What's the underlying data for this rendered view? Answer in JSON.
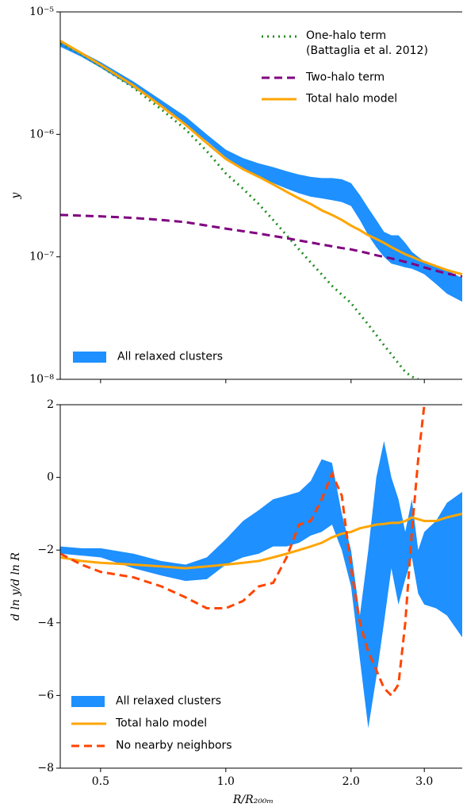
{
  "chart_data": [
    {
      "type": "line",
      "ylabel": "y",
      "log_y": true,
      "legend": "upper right",
      "x": [
        0.4,
        0.45,
        0.5,
        0.6,
        0.7,
        0.8,
        0.9,
        1.0,
        1.1,
        1.2,
        1.3,
        1.4,
        1.5,
        1.6,
        1.7,
        1.8,
        1.9,
        2.0,
        2.1,
        2.2,
        2.3,
        2.4,
        2.5,
        2.6,
        2.7,
        2.8,
        2.9,
        3.0,
        3.2,
        3.4,
        3.7
      ],
      "xlim": [
        0.4,
        3.7
      ],
      "log_x": true,
      "ylim": [
        1e-08,
        1e-05
      ],
      "yticks": [
        {
          "value": 1e-05,
          "label": "10⁻⁵"
        },
        {
          "value": 1e-06,
          "label": "10⁻⁶"
        },
        {
          "value": 1e-07,
          "label": "10⁻⁷"
        },
        {
          "value": 1e-08,
          "label": "10⁻⁸"
        }
      ],
      "series": [
        {
          "name": "All relaxed clusters",
          "color": "#1e90ff",
          "style": "band",
          "legend": "lower left",
          "upper": [
            5.7e-06,
            4.7e-06,
            3.9e-06,
            2.7e-06,
            1.9e-06,
            1.4e-06,
            1e-06,
            7.5e-07,
            6.4e-07,
            5.8e-07,
            5.4e-07,
            5e-07,
            4.7e-07,
            4.5e-07,
            4.4e-07,
            4.4e-07,
            4.3e-07,
            4e-07,
            3.2e-07,
            2.5e-07,
            2e-07,
            1.6e-07,
            1.5e-07,
            1.5e-07,
            1.3e-07,
            1.1e-07,
            1e-07,
            9.2e-08,
            8.5e-08,
            7.8e-08,
            6.7e-08
          ],
          "lower": [
            5.2e-06,
            4.3e-06,
            3.5e-06,
            2.4e-06,
            1.7e-06,
            1.2e-06,
            8.8e-07,
            6.5e-07,
            5.2e-07,
            4.5e-07,
            4e-07,
            3.6e-07,
            3.3e-07,
            3.1e-07,
            3e-07,
            2.9e-07,
            2.8e-07,
            2.6e-07,
            2e-07,
            1.5e-07,
            1.2e-07,
            1e-07,
            8.8e-08,
            8.5e-08,
            8.2e-08,
            8e-08,
            7.6e-08,
            7.2e-08,
            6e-08,
            5e-08,
            4.3e-08
          ]
        },
        {
          "name": "One-halo term\n(Battaglia et al. 2012)",
          "color": "#228b22",
          "style": "dotted",
          "values": [
            5.5e-06,
            4.5e-06,
            3.6e-06,
            2.4e-06,
            1.6e-06,
            1.1e-06,
            7.3e-07,
            4.8e-07,
            3.6e-07,
            2.7e-07,
            2e-07,
            1.5e-07,
            1.15e-07,
            9e-08,
            7.2e-08,
            5.8e-08,
            4.9e-08,
            4.2e-08,
            3.4e-08,
            2.8e-08,
            2.3e-08,
            1.9e-08,
            1.6e-08,
            1.35e-08,
            1.15e-08,
            1.05e-08,
            1e-08,
            null,
            null,
            null,
            null
          ]
        },
        {
          "name": "Two-halo term",
          "color": "#800080",
          "style": "dashed",
          "values": [
            2.2e-07,
            2.17e-07,
            2.14e-07,
            2.08e-07,
            2e-07,
            1.92e-07,
            1.8e-07,
            1.7e-07,
            1.62e-07,
            1.55e-07,
            1.48e-07,
            1.42e-07,
            1.36e-07,
            1.31e-07,
            1.26e-07,
            1.22e-07,
            1.18e-07,
            1.15e-07,
            1.11e-07,
            1.07e-07,
            1.03e-07,
            1e-07,
            9.7e-08,
            9.4e-08,
            9.1e-08,
            8.8e-08,
            8.5e-08,
            8.2e-08,
            7.7e-08,
            7.3e-08,
            6.9e-08
          ]
        },
        {
          "name": "Total halo model",
          "color": "#ffa500",
          "style": "solid",
          "values": [
            5.8e-06,
            4.6e-06,
            3.7e-06,
            2.5e-06,
            1.7e-06,
            1.2e-06,
            8.5e-07,
            6.3e-07,
            5.2e-07,
            4.5e-07,
            3.9e-07,
            3.4e-07,
            3e-07,
            2.7e-07,
            2.4e-07,
            2.2e-07,
            2e-07,
            1.8e-07,
            1.65e-07,
            1.5e-07,
            1.4e-07,
            1.3e-07,
            1.2e-07,
            1.12e-07,
            1.05e-07,
            1e-07,
            9.5e-08,
            9.1e-08,
            8.4e-08,
            7.8e-08,
            7.2e-08
          ]
        }
      ]
    },
    {
      "type": "line",
      "ylabel": "d ln y/d ln R",
      "xlabel": "R/R₂₀₀ₘ",
      "legend": "lower left",
      "x": [
        0.4,
        0.45,
        0.5,
        0.6,
        0.7,
        0.8,
        0.9,
        1.0,
        1.1,
        1.2,
        1.3,
        1.4,
        1.5,
        1.6,
        1.7,
        1.8,
        1.9,
        2.0,
        2.1,
        2.2,
        2.3,
        2.4,
        2.5,
        2.6,
        2.7,
        2.8,
        2.9,
        3.0,
        3.2,
        3.4,
        3.7
      ],
      "xlim": [
        0.4,
        3.7
      ],
      "log_x": true,
      "xticks": [
        0.5,
        {
          "value": 1,
          "label": "1.0"
        },
        {
          "value": 2,
          "label": "2.0"
        },
        {
          "value": 3,
          "label": "3.0"
        }
      ],
      "ylim": [
        -8,
        2
      ],
      "yticks": [
        2,
        0,
        {
          "value": -2,
          "label": "−2"
        },
        {
          "value": -4,
          "label": "−4"
        },
        {
          "value": -6,
          "label": "−6"
        },
        {
          "value": -8,
          "label": "−8"
        }
      ],
      "series": [
        {
          "name": "All relaxed clusters",
          "color": "#1e90ff",
          "style": "band",
          "upper": [
            -1.9,
            -1.95,
            -1.95,
            -2.1,
            -2.3,
            -2.4,
            -2.2,
            -1.7,
            -1.2,
            -0.9,
            -0.6,
            -0.5,
            -0.4,
            -0.1,
            0.5,
            0.4,
            -1.0,
            -2.0,
            -3.8,
            -2.0,
            0.0,
            1.0,
            0.0,
            -0.6,
            -1.5,
            -0.6,
            -2.0,
            -1.5,
            -1.2,
            -0.7,
            -0.4
          ],
          "lower": [
            -2.1,
            -2.15,
            -2.2,
            -2.5,
            -2.7,
            -2.85,
            -2.8,
            -2.4,
            -2.2,
            -2.1,
            -1.9,
            -1.9,
            -1.8,
            -1.6,
            -1.5,
            -1.3,
            -2.0,
            -3.0,
            -5.0,
            -6.9,
            -5.5,
            -4.0,
            -2.5,
            -3.5,
            -2.8,
            -2.2,
            -3.2,
            -3.5,
            -3.6,
            -3.8,
            -4.4
          ]
        },
        {
          "name": "Total halo model",
          "color": "#ffa500",
          "style": "solid",
          "values": [
            -2.2,
            -2.3,
            -2.35,
            -2.4,
            -2.45,
            -2.5,
            -2.45,
            -2.4,
            -2.35,
            -2.3,
            -2.2,
            -2.1,
            -2.0,
            -1.9,
            -1.8,
            -1.65,
            -1.55,
            -1.5,
            -1.4,
            -1.35,
            -1.3,
            -1.28,
            -1.25,
            -1.25,
            -1.2,
            -1.1,
            -1.15,
            -1.2,
            -1.2,
            -1.1,
            -1.0
          ]
        },
        {
          "name": "No nearby neighbors",
          "color": "#ff4500",
          "style": "dashed",
          "values": [
            -2.1,
            -2.4,
            -2.6,
            -2.75,
            -3.0,
            -3.3,
            -3.6,
            -3.6,
            -3.4,
            -3.0,
            -2.9,
            -2.2,
            -1.3,
            -1.2,
            -0.6,
            0.1,
            -0.5,
            -2.5,
            -4.0,
            -4.8,
            -5.3,
            -5.8,
            -6.0,
            -5.7,
            -4.0,
            -1.5,
            0.5,
            2.0,
            null,
            null,
            null
          ]
        }
      ]
    }
  ]
}
